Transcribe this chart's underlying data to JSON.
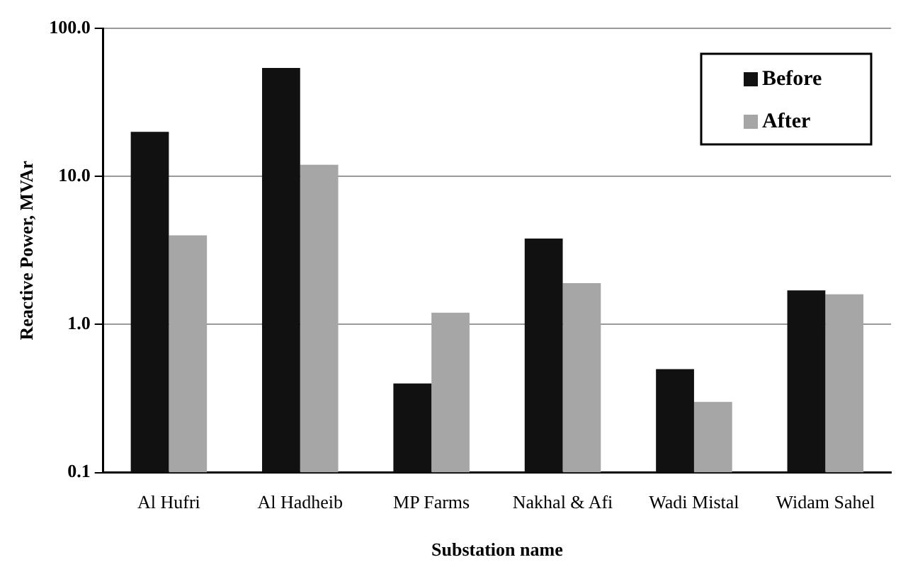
{
  "chart_data": {
    "type": "bar",
    "xlabel": "Substation name",
    "ylabel": "Reactive Power, MVAr",
    "categories": [
      "Al Hufri",
      "Al Hadheib",
      "MP Farms",
      "Nakhal & Afi",
      "Wadi Mistal",
      "Widam Sahel"
    ],
    "series": [
      {
        "name": "Before",
        "color": "#111111",
        "values": [
          20,
          54,
          0.4,
          3.8,
          0.5,
          1.7
        ]
      },
      {
        "name": "After",
        "color": "#a6a6a6",
        "values": [
          4,
          12,
          1.2,
          1.9,
          0.3,
          1.6
        ]
      }
    ],
    "log": "y",
    "ylim": [
      0.1,
      100
    ],
    "yticks": [
      {
        "value": 0.1,
        "label": "0.1"
      },
      {
        "value": 1,
        "label": "1.0"
      },
      {
        "value": 10,
        "label": "10.0"
      },
      {
        "value": 100,
        "label": "100.0"
      }
    ],
    "grid": "y",
    "legend": "top right"
  }
}
